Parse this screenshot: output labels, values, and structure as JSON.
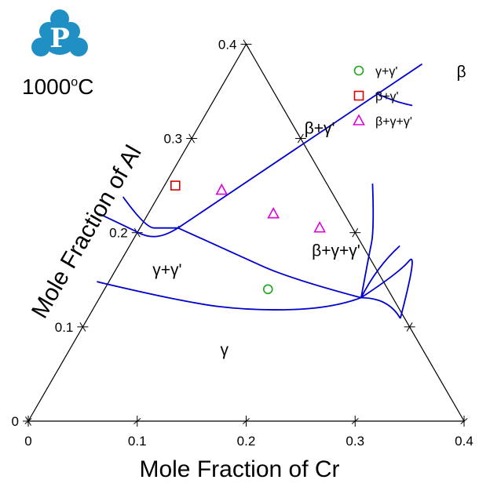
{
  "header": {
    "temperature_value": "1000",
    "temperature_sup": "o",
    "temperature_unit": "C"
  },
  "chart_data": {
    "type": "scatter",
    "subtype": "ternary-isothermal-section",
    "xlabel": "Mole Fraction of Cr",
    "ylabel": "Mole Fraction of Al",
    "xlim": [
      0,
      0.4
    ],
    "ylim": [
      0,
      0.4
    ],
    "x_ticks": [
      "0",
      "0.1",
      "0.2",
      "0.3",
      "0.4"
    ],
    "y_ticks": [
      "0",
      "0.1",
      "0.2",
      "0.3",
      "0.4"
    ],
    "grid": false,
    "legend_position": "top-right",
    "region_labels": [
      {
        "text": "β",
        "x": 0.215,
        "y": 0.365
      },
      {
        "text": "β+γ'",
        "x": 0.115,
        "y": 0.305
      },
      {
        "text": "β+γ+γ'",
        "x": 0.195,
        "y": 0.175
      },
      {
        "text": "γ+γ'",
        "x": 0.05,
        "y": 0.155
      },
      {
        "text": "γ",
        "x": 0.145,
        "y": 0.07
      }
    ],
    "series": [
      {
        "name": "γ+γ'",
        "marker": "circle",
        "color": "#1aa51a",
        "points": [
          [
            0.15,
            0.14
          ]
        ]
      },
      {
        "name": "β+γ'",
        "marker": "square",
        "color": "#dd0000",
        "points": [
          [
            0.01,
            0.25
          ]
        ]
      },
      {
        "name": "β+γ+γ'",
        "marker": "triangle",
        "color": "#dd00dd",
        "points": [
          [
            0.055,
            0.245
          ],
          [
            0.115,
            0.22
          ],
          [
            0.165,
            0.205
          ]
        ]
      }
    ],
    "boundaries": [
      {
        "color": "#0000cc",
        "points": [
          [
            0.145,
            0.348
          ],
          [
            0.169,
            0.338
          ],
          [
            0.185,
            0.335
          ]
        ]
      },
      {
        "color": "#0000cc",
        "points": [
          [
            0.035,
            0.205
          ],
          [
            0.107,
            0.297
          ],
          [
            0.172,
            0.379
          ]
        ]
      },
      {
        "color": "#0000cc",
        "points": [
          [
            0.035,
            0.205
          ],
          [
            0.035,
            0.207
          ]
        ]
      },
      {
        "color": "#0000cc",
        "points": [
          [
            -0.032,
            0.238
          ],
          [
            0.005,
            0.205
          ],
          [
            0.021,
            0.205
          ],
          [
            0.035,
            0.205
          ]
        ]
      },
      {
        "color": "#0000cc",
        "points": [
          [
            -0.045,
            0.22
          ],
          [
            -0.01,
            0.205
          ],
          [
            0.012,
            0.195
          ],
          [
            0.028,
            0.197
          ],
          [
            0.035,
            0.205
          ]
        ]
      },
      {
        "color": "#0000cc",
        "points": [
          [
            0.035,
            0.205
          ],
          [
            0.1,
            0.178
          ],
          [
            0.165,
            0.151
          ],
          [
            0.24,
            0.131
          ]
        ]
      },
      {
        "color": "#0000cc",
        "points": [
          [
            -0.011,
            0.148
          ],
          [
            0.08,
            0.126
          ],
          [
            0.15,
            0.117
          ],
          [
            0.22,
            0.12
          ],
          [
            0.24,
            0.131
          ]
        ]
      },
      {
        "color": "#0000cc",
        "points": [
          [
            0.24,
            0.131
          ],
          [
            0.265,
            0.131
          ],
          [
            0.287,
            0.109
          ]
        ]
      },
      {
        "color": "#0000cc",
        "points": [
          [
            0.24,
            0.131
          ],
          [
            0.238,
            0.164
          ],
          [
            0.248,
            0.186
          ]
        ]
      },
      {
        "color": "#0000cc",
        "points": [
          [
            0.19,
            0.252
          ],
          [
            0.216,
            0.203
          ],
          [
            0.225,
            0.175
          ],
          [
            0.24,
            0.131
          ]
        ]
      },
      {
        "color": "#0000cc",
        "points": [
          [
            0.24,
            0.131
          ],
          [
            0.262,
            0.158
          ],
          [
            0.267,
            0.182
          ],
          [
            0.287,
            0.109
          ]
        ]
      }
    ]
  }
}
